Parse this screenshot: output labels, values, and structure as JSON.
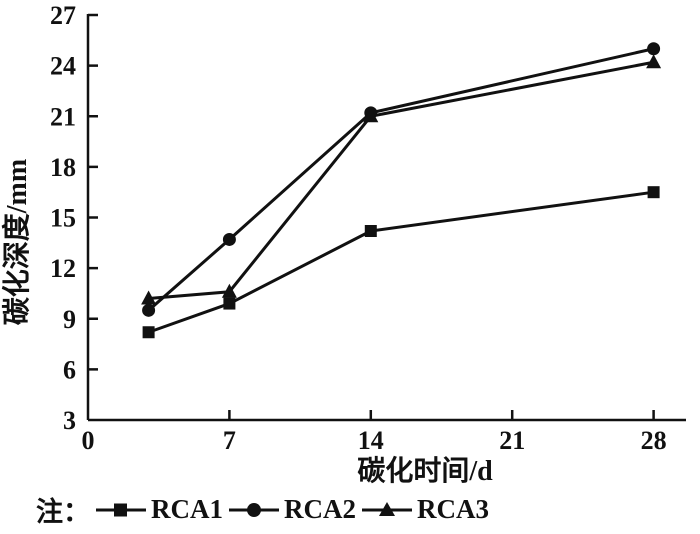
{
  "chart_data": {
    "type": "line",
    "title": "",
    "xlabel": "碳化时间/d",
    "ylabel": "碳化深度/mm",
    "xlim": [
      0,
      28
    ],
    "ylim": [
      3,
      27
    ],
    "x_ticks": [
      0,
      7,
      14,
      21,
      28
    ],
    "y_ticks": [
      3,
      6,
      9,
      12,
      15,
      18,
      21,
      24,
      27
    ],
    "grid": false,
    "line_color": "#111111",
    "legend_position": "bottom-left",
    "x": [
      3,
      7,
      14,
      28
    ],
    "series": [
      {
        "name": "RCA1",
        "marker": "square",
        "values": [
          8.2,
          9.9,
          14.2,
          16.5
        ]
      },
      {
        "name": "RCA2",
        "marker": "circle",
        "values": [
          9.5,
          13.7,
          21.2,
          25.0
        ]
      },
      {
        "name": "RCA3",
        "marker": "triangle",
        "values": [
          10.2,
          10.6,
          21.0,
          24.2
        ]
      }
    ]
  },
  "legend": {
    "prefix": "注：",
    "items": [
      {
        "label": "RCA1",
        "marker": "square"
      },
      {
        "label": "RCA2",
        "marker": "circle"
      },
      {
        "label": "RCA3",
        "marker": "triangle"
      }
    ]
  }
}
